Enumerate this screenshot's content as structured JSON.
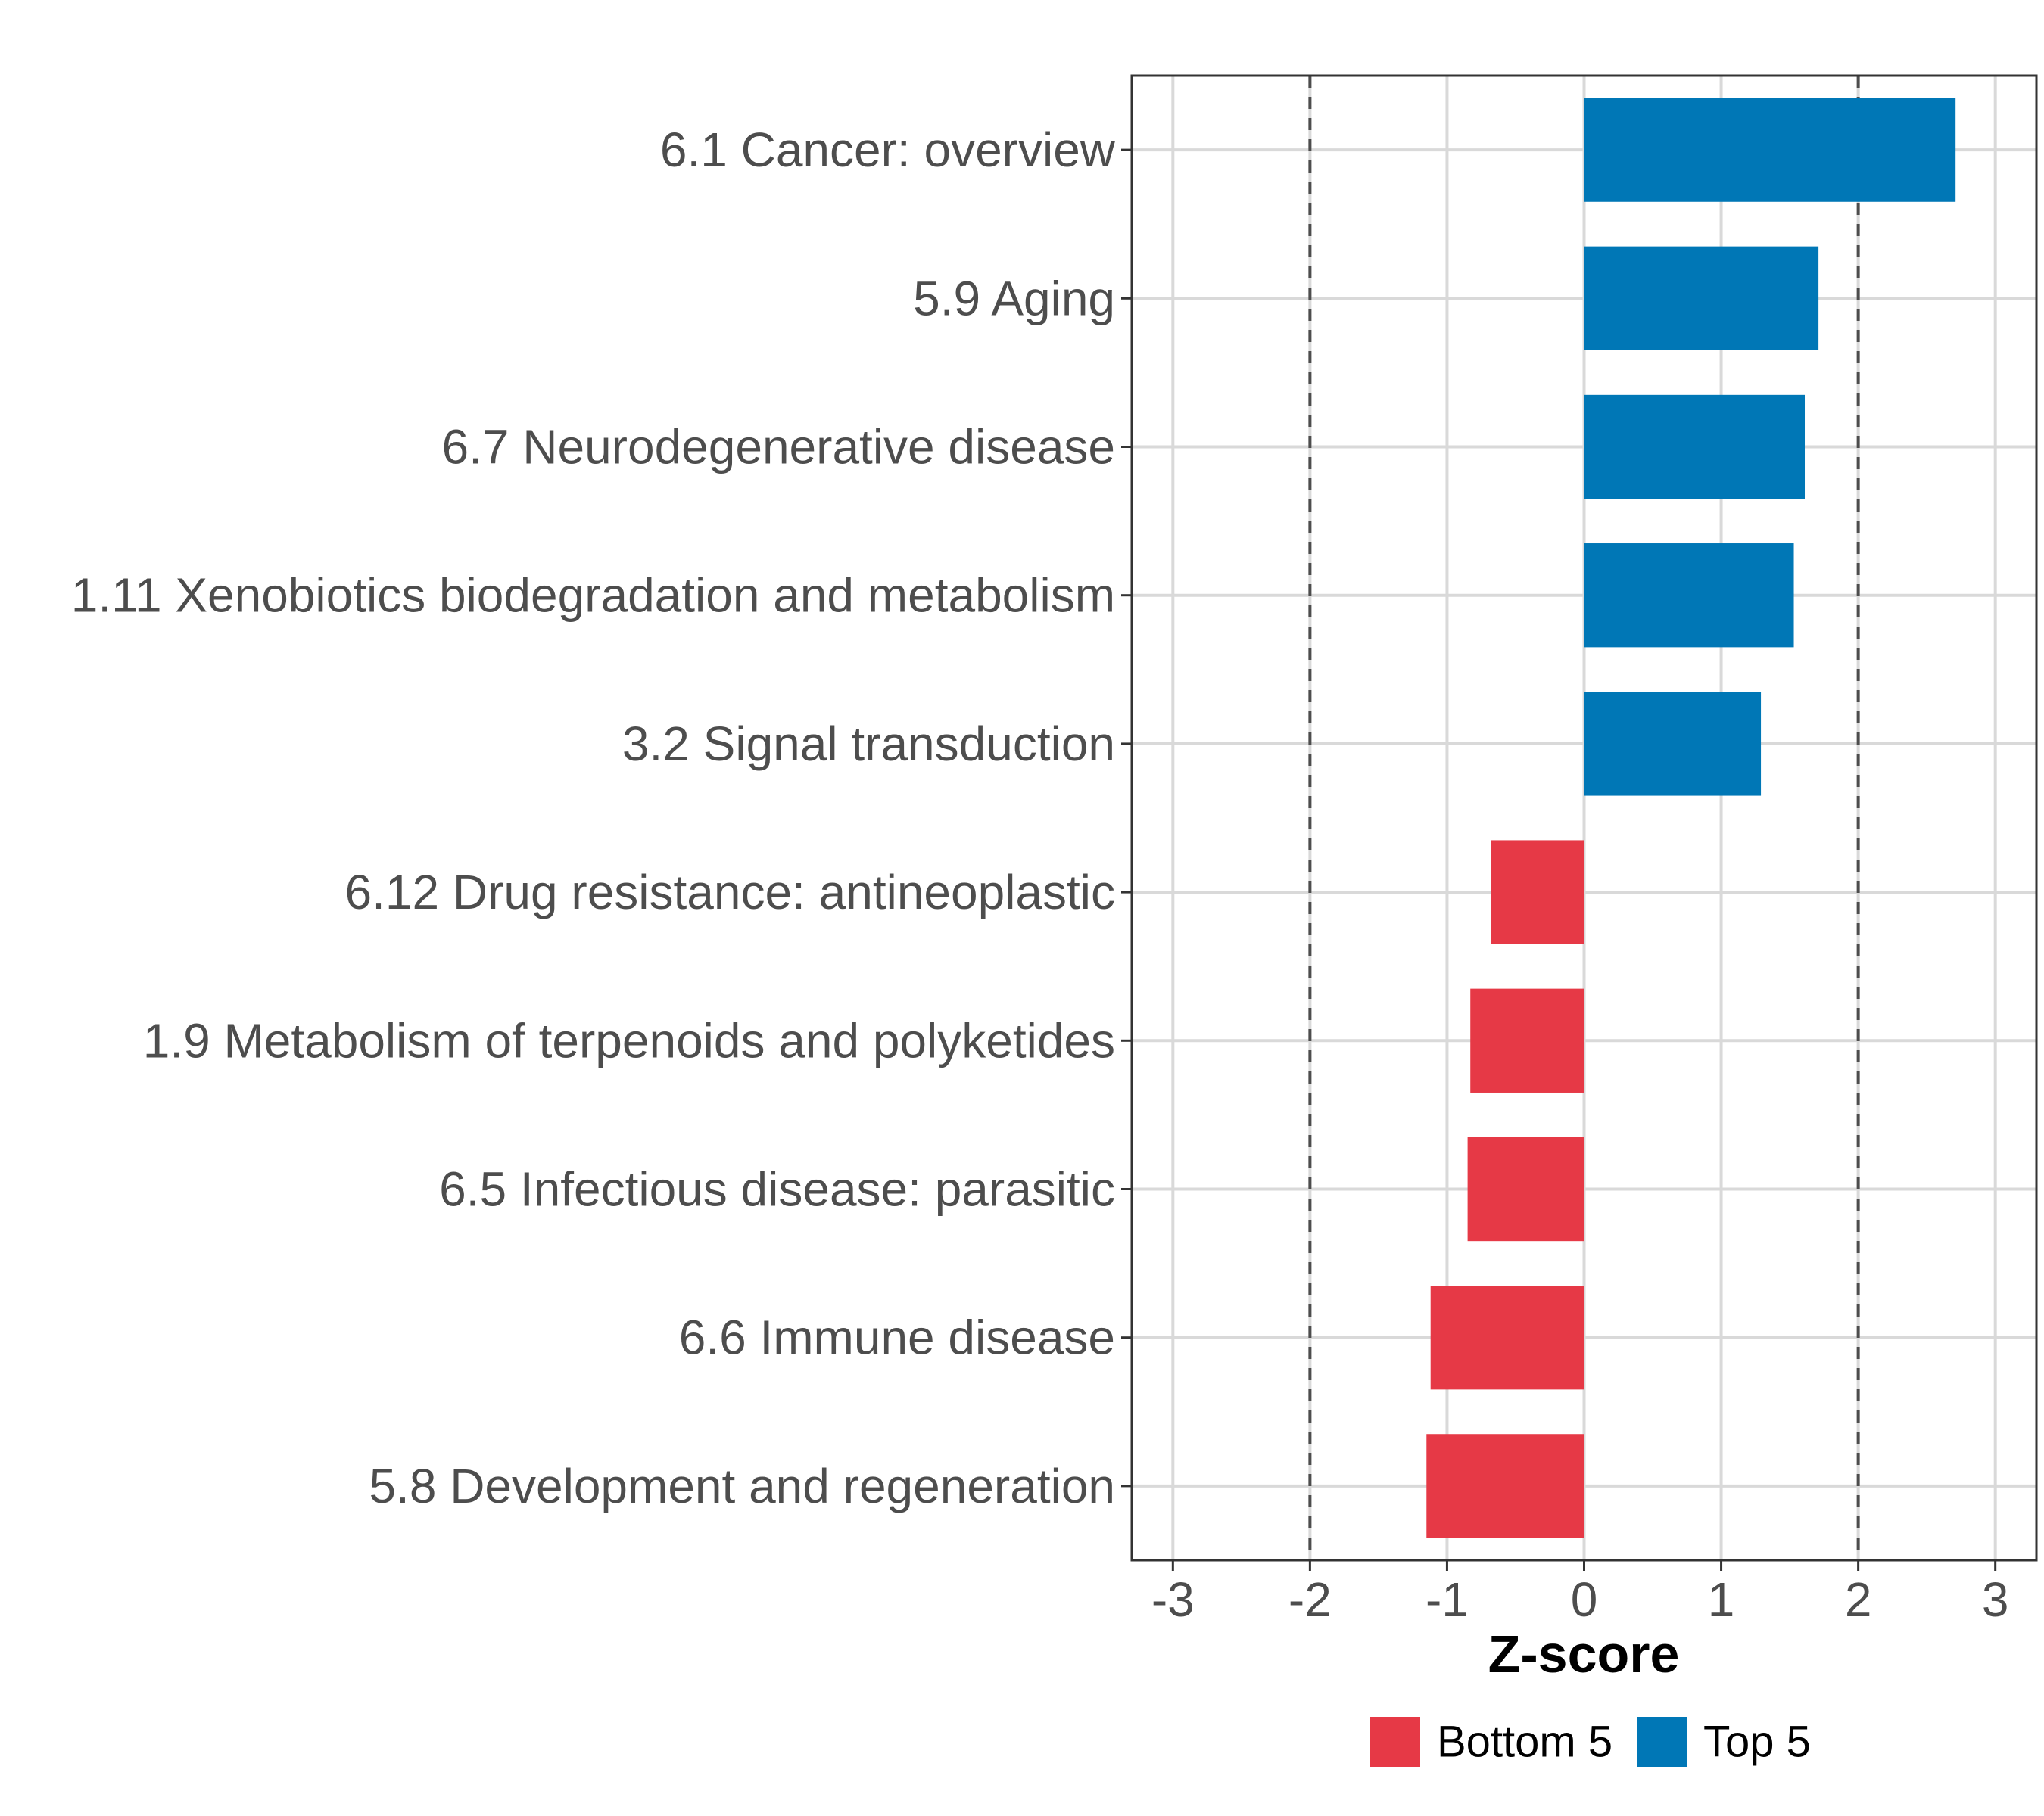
{
  "chart_data": {
    "type": "bar",
    "orientation": "horizontal",
    "title": "",
    "xlabel": "Z-score",
    "ylabel": "",
    "xlim": [
      -3.3,
      3.3
    ],
    "xticks": [
      -3,
      -2,
      -1,
      0,
      1,
      2,
      3
    ],
    "xtick_labels": [
      "-3",
      "-2",
      "-1",
      "0",
      "1",
      "2",
      "3"
    ],
    "reference_lines": [
      -2,
      2
    ],
    "grid": true,
    "legend_position": "bottom",
    "colors": {
      "Bottom 5": "#e63946",
      "Top 5": "#0077b6"
    },
    "legend": [
      {
        "label": "Bottom 5",
        "color": "#e63946"
      },
      {
        "label": "Top 5",
        "color": "#0077b6"
      }
    ],
    "categories": [
      "6.1 Cancer: overview",
      "5.9 Aging",
      "6.7 Neurodegenerative disease",
      "1.11 Xenobiotics biodegradation and metabolism",
      "3.2 Signal transduction",
      "6.12 Drug resistance: antineoplastic",
      "1.9 Metabolism of terpenoids and polyketides",
      "6.5 Infectious disease: parasitic",
      "6.6 Immune disease",
      "5.8 Development and regeneration"
    ],
    "values": [
      2.71,
      1.71,
      1.61,
      1.53,
      1.29,
      -0.68,
      -0.83,
      -0.85,
      -1.12,
      -1.15
    ],
    "groups": [
      "Top 5",
      "Top 5",
      "Top 5",
      "Top 5",
      "Top 5",
      "Bottom 5",
      "Bottom 5",
      "Bottom 5",
      "Bottom 5",
      "Bottom 5"
    ]
  }
}
